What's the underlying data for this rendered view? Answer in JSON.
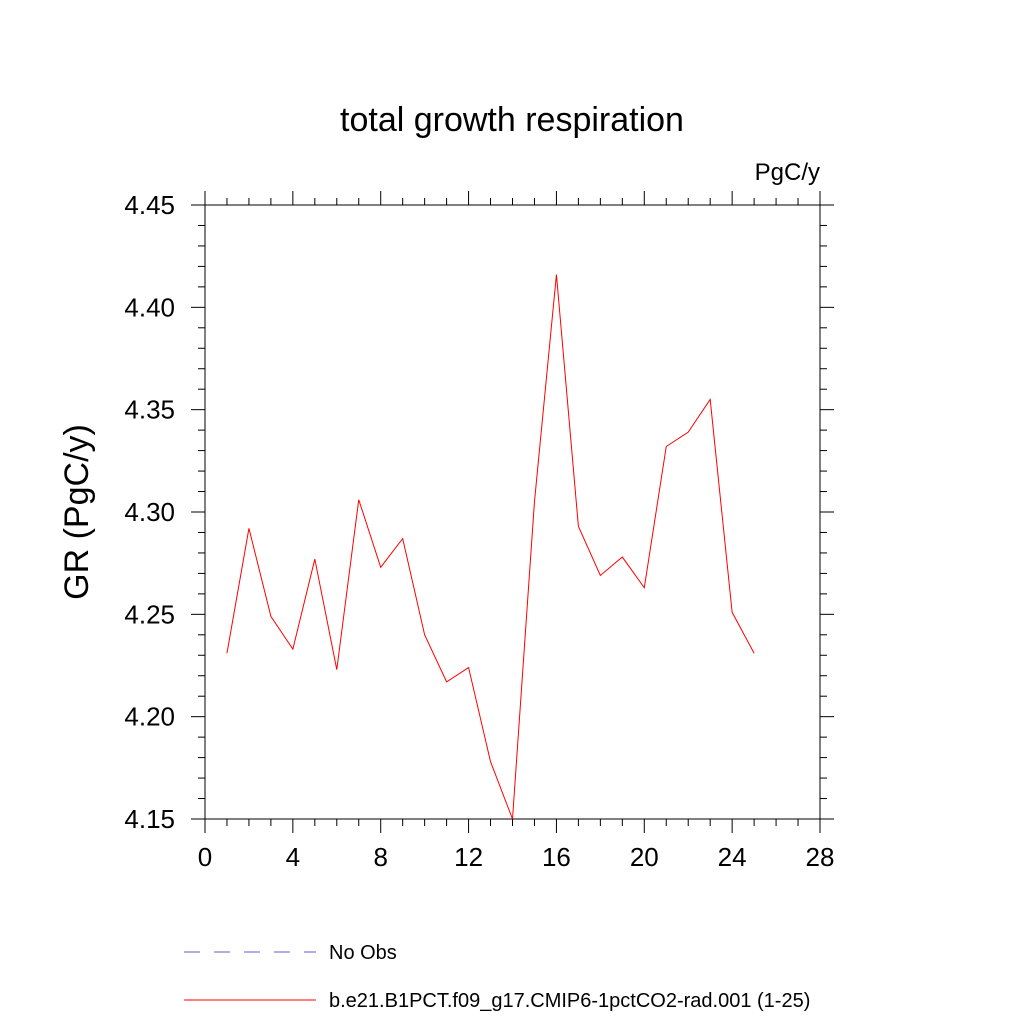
{
  "chart_data": {
    "type": "line",
    "title": "total growth respiration",
    "units_label": "PgC/y",
    "xlabel": "",
    "ylabel": "GR  (PgC/y)",
    "xlim": [
      0,
      28
    ],
    "ylim": [
      4.15,
      4.45
    ],
    "x_ticks": [
      0,
      4,
      8,
      12,
      16,
      20,
      24,
      28
    ],
    "x_tick_labels": [
      "0",
      "4",
      "8",
      "12",
      "16",
      "20",
      "24",
      "28"
    ],
    "y_ticks": [
      4.15,
      4.2,
      4.25,
      4.3,
      4.35,
      4.4,
      4.45
    ],
    "y_tick_labels": [
      "4.15",
      "4.20",
      "4.25",
      "4.30",
      "4.35",
      "4.40",
      "4.45"
    ],
    "x_minor_step": 1,
    "y_minor_step": 0.01,
    "grid": false,
    "legend_position": "bottom",
    "series": [
      {
        "name": "No Obs",
        "color": "#6a5acd",
        "style": "dashed",
        "x": [],
        "y": []
      },
      {
        "name": "b.e21.B1PCT.f09_g17.CMIP6-1pctCO2-rad.001 (1-25)",
        "color": "#ff0000",
        "style": "solid",
        "x": [
          1,
          2,
          3,
          4,
          5,
          6,
          7,
          8,
          9,
          10,
          11,
          12,
          13,
          14,
          15,
          16,
          17,
          18,
          19,
          20,
          21,
          22,
          23,
          24,
          25
        ],
        "y": [
          4.231,
          4.292,
          4.249,
          4.233,
          4.277,
          4.223,
          4.306,
          4.273,
          4.287,
          4.24,
          4.217,
          4.224,
          4.178,
          4.15,
          4.305,
          4.416,
          4.293,
          4.269,
          4.278,
          4.263,
          4.332,
          4.339,
          4.355,
          4.251,
          4.231
        ]
      }
    ]
  }
}
